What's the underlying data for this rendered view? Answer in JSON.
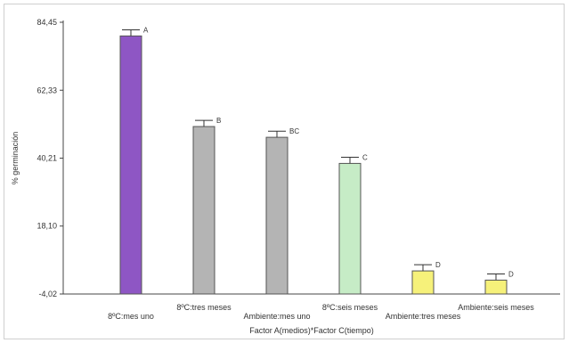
{
  "chart_data": {
    "type": "bar",
    "title": "",
    "xlabel": "Factor A(medios)*Factor C(tiempo)",
    "ylabel": "% germinación",
    "yticks": [
      -4.02,
      18.1,
      40.21,
      62.33,
      84.45
    ],
    "ytick_labels": [
      "-4,02",
      "18,10",
      "40,21",
      "62,33",
      "84,45"
    ],
    "ylim": [
      -4.02,
      84.45
    ],
    "grid": false,
    "legend": "none",
    "categories": [
      "8ºC:mes uno",
      "8ºC:tres meses",
      "Ambiente:mes uno",
      "8ºC:seis meses",
      "Ambiente:tres meses",
      "Ambiente:seis meses"
    ],
    "values": [
      80.0,
      50.5,
      47.0,
      38.5,
      3.5,
      0.5
    ],
    "errors": [
      2.0,
      2.0,
      2.0,
      2.0,
      2.0,
      2.0
    ],
    "group_letters": [
      "A",
      "B",
      "BC",
      "C",
      "D",
      "D"
    ],
    "bar_colors": [
      "#8e56c4",
      "#b4b4b4",
      "#b4b4b4",
      "#c6ecc6",
      "#f6f17a",
      "#f6f17a"
    ],
    "bar_edge_color": "#555555"
  }
}
